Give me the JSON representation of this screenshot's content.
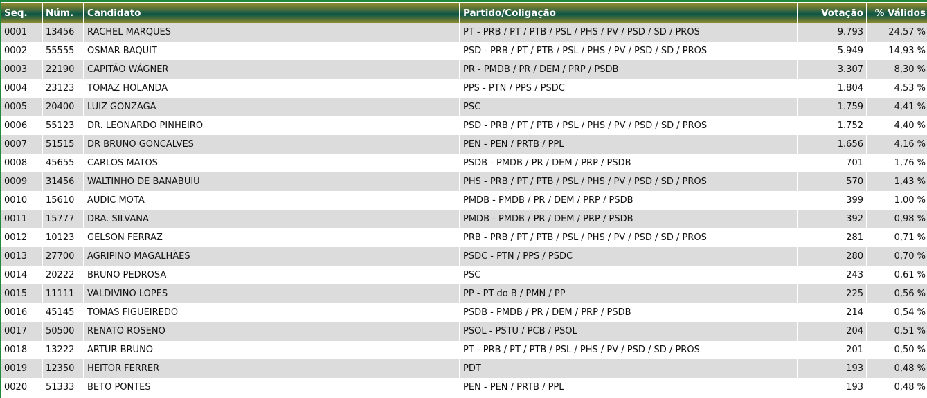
{
  "colors": {
    "header_top": "#8c8a2e",
    "header_mid": "#0c5648",
    "row_alt": "#dcdcdc",
    "border": "#1f8a3c"
  },
  "headers": {
    "seq": "Seq.",
    "num": "Núm.",
    "candidato": "Candidato",
    "partido": "Partido/Coligação",
    "votacao": "Votação",
    "validos": "% Válidos"
  },
  "rows": [
    {
      "seq": "0001",
      "num": "13456",
      "candidato": "RACHEL MARQUES",
      "partido": "PT - PRB / PT / PTB / PSL / PHS / PV / PSD / SD / PROS",
      "votacao": "9.793",
      "validos": "24,57 %"
    },
    {
      "seq": "0002",
      "num": "55555",
      "candidato": "OSMAR BAQUIT",
      "partido": "PSD - PRB / PT / PTB / PSL / PHS / PV / PSD / SD / PROS",
      "votacao": "5.949",
      "validos": "14,93 %"
    },
    {
      "seq": "0003",
      "num": "22190",
      "candidato": "CAPITÃO WÁGNER",
      "partido": "PR - PMDB / PR / DEM / PRP / PSDB",
      "votacao": "3.307",
      "validos": "8,30 %"
    },
    {
      "seq": "0004",
      "num": "23123",
      "candidato": "TOMAZ HOLANDA",
      "partido": "PPS - PTN / PPS / PSDC",
      "votacao": "1.804",
      "validos": "4,53 %"
    },
    {
      "seq": "0005",
      "num": "20400",
      "candidato": "LUIZ GONZAGA",
      "partido": "PSC",
      "votacao": "1.759",
      "validos": "4,41 %"
    },
    {
      "seq": "0006",
      "num": "55123",
      "candidato": "DR. LEONARDO PINHEIRO",
      "partido": "PSD - PRB / PT / PTB / PSL / PHS / PV / PSD / SD / PROS",
      "votacao": "1.752",
      "validos": "4,40 %"
    },
    {
      "seq": "0007",
      "num": "51515",
      "candidato": "DR BRUNO GONCALVES",
      "partido": "PEN - PEN / PRTB / PPL",
      "votacao": "1.656",
      "validos": "4,16 %"
    },
    {
      "seq": "0008",
      "num": "45655",
      "candidato": "CARLOS MATOS",
      "partido": "PSDB - PMDB / PR / DEM / PRP / PSDB",
      "votacao": "701",
      "validos": "1,76 %"
    },
    {
      "seq": "0009",
      "num": "31456",
      "candidato": "WALTINHO DE BANABUIU",
      "partido": "PHS - PRB / PT / PTB / PSL / PHS / PV / PSD / SD / PROS",
      "votacao": "570",
      "validos": "1,43 %"
    },
    {
      "seq": "0010",
      "num": "15610",
      "candidato": "AUDIC MOTA",
      "partido": "PMDB - PMDB / PR / DEM / PRP / PSDB",
      "votacao": "399",
      "validos": "1,00 %"
    },
    {
      "seq": "0011",
      "num": "15777",
      "candidato": "DRA. SILVANA",
      "partido": "PMDB - PMDB / PR / DEM / PRP / PSDB",
      "votacao": "392",
      "validos": "0,98 %"
    },
    {
      "seq": "0012",
      "num": "10123",
      "candidato": "GELSON FERRAZ",
      "partido": "PRB - PRB / PT / PTB / PSL / PHS / PV / PSD / SD / PROS",
      "votacao": "281",
      "validos": "0,71 %"
    },
    {
      "seq": "0013",
      "num": "27700",
      "candidato": "AGRIPINO MAGALHÃES",
      "partido": "PSDC - PTN / PPS / PSDC",
      "votacao": "280",
      "validos": "0,70 %"
    },
    {
      "seq": "0014",
      "num": "20222",
      "candidato": "BRUNO PEDROSA",
      "partido": "PSC",
      "votacao": "243",
      "validos": "0,61 %"
    },
    {
      "seq": "0015",
      "num": "11111",
      "candidato": "VALDIVINO LOPES",
      "partido": "PP - PT do B / PMN / PP",
      "votacao": "225",
      "validos": "0,56 %"
    },
    {
      "seq": "0016",
      "num": "45145",
      "candidato": "TOMAS FIGUEIREDO",
      "partido": "PSDB - PMDB / PR / DEM / PRP / PSDB",
      "votacao": "214",
      "validos": "0,54 %"
    },
    {
      "seq": "0017",
      "num": "50500",
      "candidato": "RENATO ROSENO",
      "partido": "PSOL - PSTU / PCB / PSOL",
      "votacao": "204",
      "validos": "0,51 %"
    },
    {
      "seq": "0018",
      "num": "13222",
      "candidato": "ARTUR BRUNO",
      "partido": "PT - PRB / PT / PTB / PSL / PHS / PV / PSD / SD / PROS",
      "votacao": "201",
      "validos": "0,50 %"
    },
    {
      "seq": "0019",
      "num": "12350",
      "candidato": "HEITOR FERRER",
      "partido": "PDT",
      "votacao": "193",
      "validos": "0,48 %"
    },
    {
      "seq": "0020",
      "num": "51333",
      "candidato": "BETO PONTES",
      "partido": "PEN - PEN / PRTB / PPL",
      "votacao": "193",
      "validos": "0,48 %"
    }
  ]
}
